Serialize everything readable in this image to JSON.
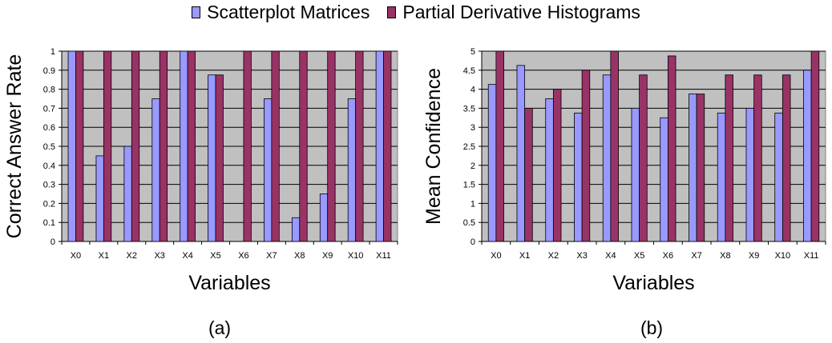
{
  "legend": {
    "series_a": "Scatterplot Matrices",
    "series_b": "Partial Derivative Histograms"
  },
  "colors": {
    "series_a": "#9999ff",
    "series_b": "#993366",
    "plot_bg": "#c0c0c0",
    "grid": "#000000"
  },
  "chart_data": [
    {
      "type": "bar",
      "panel_label": "(a)",
      "xlabel": "Variables",
      "ylabel": "Correct Answer Rate",
      "categories": [
        "X0",
        "X1",
        "X2",
        "X3",
        "X4",
        "X5",
        "X6",
        "X7",
        "X8",
        "X9",
        "X10",
        "X11"
      ],
      "ylim": [
        0,
        1
      ],
      "yticks": [
        "0",
        "0.1",
        "0.2",
        "0.3",
        "0.4",
        "0.5",
        "0.6",
        "0.7",
        "0.8",
        "0.9",
        "1"
      ],
      "grid": true,
      "series": [
        {
          "name": "Scatterplot Matrices",
          "values": [
            1,
            0.45,
            0.5,
            0.75,
            1,
            0.875,
            0,
            0.75,
            0.125,
            0.25,
            0.75,
            1
          ]
        },
        {
          "name": "Partial Derivative Histograms",
          "values": [
            1,
            1,
            1,
            1,
            1,
            0.875,
            1,
            1,
            1,
            1,
            1,
            1
          ]
        }
      ]
    },
    {
      "type": "bar",
      "panel_label": "(b)",
      "xlabel": "Variables",
      "ylabel": "Mean Confidence",
      "categories": [
        "X0",
        "X1",
        "X2",
        "X3",
        "X4",
        "X5",
        "X6",
        "X7",
        "X8",
        "X9",
        "X10",
        "X11"
      ],
      "ylim": [
        0,
        5
      ],
      "yticks": [
        "0",
        "0.5",
        "1",
        "1.5",
        "2",
        "2.5",
        "3",
        "3.5",
        "4",
        "4.5",
        "5"
      ],
      "grid": true,
      "series": [
        {
          "name": "Scatterplot Matrices",
          "values": [
            4.125,
            4.625,
            3.75,
            3.375,
            4.375,
            3.5,
            3.25,
            3.875,
            3.375,
            3.5,
            3.375,
            4.5
          ]
        },
        {
          "name": "Partial Derivative Histograms",
          "values": [
            5,
            3.5,
            4,
            4.5,
            5,
            4.375,
            4.875,
            3.875,
            4.375,
            4.375,
            4.375,
            5
          ]
        }
      ]
    }
  ]
}
